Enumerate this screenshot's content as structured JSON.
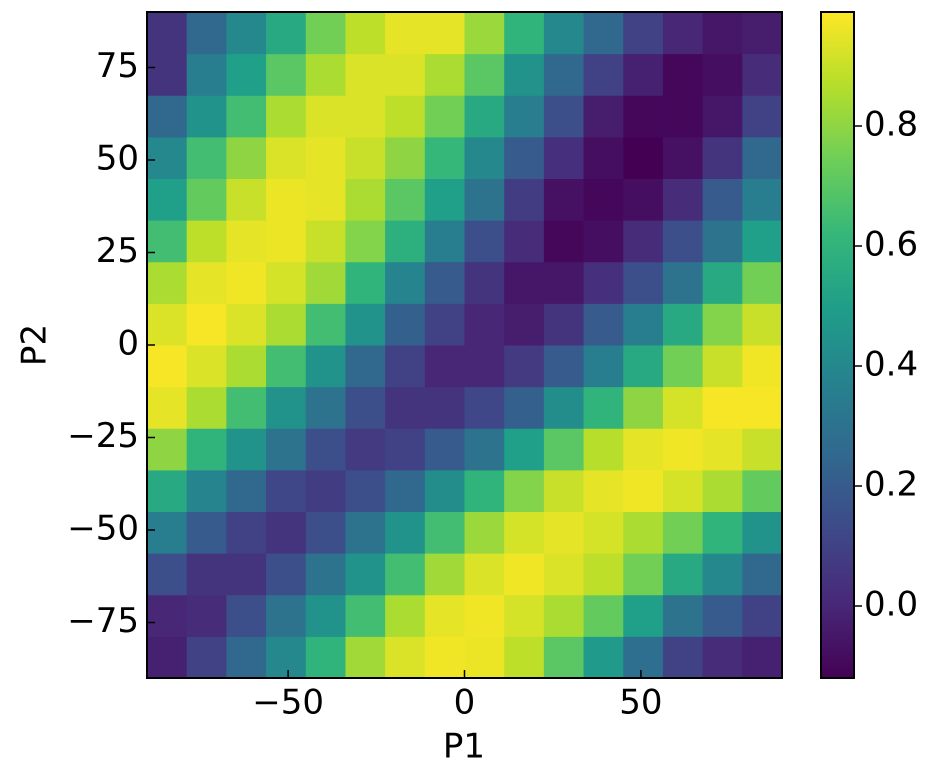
{
  "chart_data": {
    "type": "heatmap",
    "xlabel": "P1",
    "ylabel": "P2",
    "colormap": "viridis",
    "xlim": [
      -90,
      90
    ],
    "ylim": [
      -90,
      90
    ],
    "clim": [
      -0.12,
      0.99
    ],
    "xticks": [
      {
        "value": -50,
        "label": "−50"
      },
      0,
      50
    ],
    "yticks": [
      {
        "value": -75,
        "label": "−75"
      },
      {
        "value": -50,
        "label": "−50"
      },
      {
        "value": -25,
        "label": "−25"
      },
      0,
      25,
      50,
      75
    ],
    "cticks": [
      {
        "value": 0,
        "label": "0.0"
      },
      0.2,
      0.4,
      0.6,
      0.8
    ],
    "z": [
      [
        -0.02,
        0.1,
        0.25,
        0.4,
        0.6,
        0.83,
        0.93,
        0.97,
        0.96,
        0.88,
        0.7,
        0.48,
        0.28,
        0.1,
        0.02,
        -0.02
      ],
      [
        0.0,
        0.02,
        0.15,
        0.3,
        0.45,
        0.65,
        0.85,
        0.95,
        0.97,
        0.92,
        0.85,
        0.72,
        0.5,
        0.3,
        0.2,
        0.1
      ],
      [
        0.15,
        0.05,
        0.05,
        0.15,
        0.3,
        0.45,
        0.65,
        0.83,
        0.93,
        0.97,
        0.93,
        0.88,
        0.75,
        0.55,
        0.4,
        0.25
      ],
      [
        0.35,
        0.2,
        0.1,
        0.05,
        0.15,
        0.3,
        0.45,
        0.65,
        0.82,
        0.92,
        0.95,
        0.92,
        0.85,
        0.75,
        0.6,
        0.45
      ],
      [
        0.55,
        0.38,
        0.25,
        0.12,
        0.08,
        0.15,
        0.25,
        0.42,
        0.6,
        0.78,
        0.9,
        0.95,
        0.97,
        0.92,
        0.85,
        0.72
      ],
      [
        0.8,
        0.6,
        0.45,
        0.3,
        0.15,
        0.07,
        0.1,
        0.2,
        0.3,
        0.5,
        0.7,
        0.87,
        0.95,
        0.97,
        0.95,
        0.9
      ],
      [
        0.95,
        0.85,
        0.65,
        0.45,
        0.3,
        0.15,
        0.05,
        0.05,
        0.12,
        0.22,
        0.42,
        0.6,
        0.8,
        0.92,
        0.98,
        0.98
      ],
      [
        0.98,
        0.93,
        0.85,
        0.65,
        0.45,
        0.25,
        0.1,
        0.0,
        0.0,
        0.07,
        0.2,
        0.35,
        0.55,
        0.75,
        0.9,
        0.97
      ],
      [
        0.93,
        0.98,
        0.93,
        0.85,
        0.65,
        0.45,
        0.22,
        0.1,
        0.0,
        -0.03,
        0.05,
        0.2,
        0.35,
        0.55,
        0.78,
        0.9
      ],
      [
        0.85,
        0.95,
        0.97,
        0.92,
        0.83,
        0.6,
        0.38,
        0.2,
        0.05,
        -0.05,
        -0.05,
        0.03,
        0.15,
        0.3,
        0.55,
        0.75
      ],
      [
        0.65,
        0.88,
        0.95,
        0.96,
        0.9,
        0.78,
        0.58,
        0.35,
        0.15,
        0.02,
        -0.1,
        -0.08,
        0.02,
        0.15,
        0.3,
        0.5
      ],
      [
        0.5,
        0.72,
        0.9,
        0.96,
        0.95,
        0.85,
        0.7,
        0.5,
        0.3,
        0.08,
        -0.07,
        -0.1,
        -0.08,
        0.02,
        0.2,
        0.35
      ],
      [
        0.4,
        0.65,
        0.8,
        0.93,
        0.95,
        0.9,
        0.8,
        0.62,
        0.4,
        0.2,
        0.03,
        -0.08,
        -0.12,
        -0.07,
        0.05,
        0.25
      ],
      [
        0.25,
        0.45,
        0.65,
        0.85,
        0.93,
        0.93,
        0.88,
        0.75,
        0.55,
        0.35,
        0.15,
        -0.03,
        -0.1,
        -0.1,
        -0.05,
        0.1
      ],
      [
        0.05,
        0.35,
        0.5,
        0.7,
        0.85,
        0.93,
        0.93,
        0.85,
        0.7,
        0.45,
        0.25,
        0.1,
        -0.02,
        -0.1,
        -0.08,
        0.02
      ],
      [
        0.05,
        0.25,
        0.4,
        0.55,
        0.75,
        0.88,
        0.95,
        0.95,
        0.82,
        0.6,
        0.4,
        0.25,
        0.1,
        0.0,
        -0.05,
        -0.03
      ]
    ]
  }
}
